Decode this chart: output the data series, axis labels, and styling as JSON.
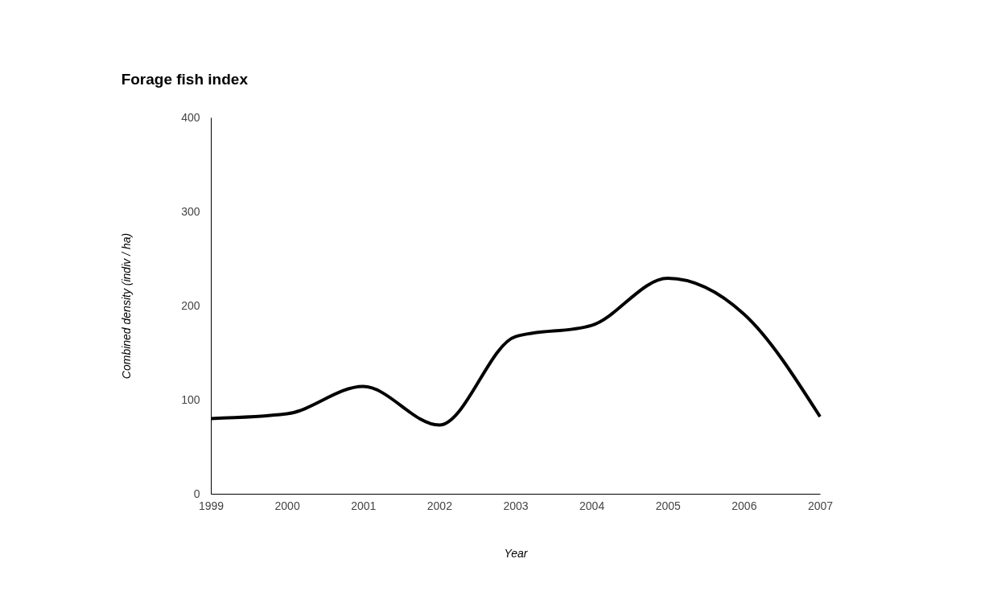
{
  "chart_data": {
    "type": "line",
    "title": "Forage fish index",
    "xlabel": "Year",
    "ylabel": "Combined density (indiv / ha)",
    "x": [
      1999,
      2000,
      2001,
      2002,
      2003,
      2004,
      2005,
      2006,
      2007
    ],
    "series": [
      {
        "color": "#000000",
        "values": [
          80,
          85,
          114,
          73,
          167,
          179,
          229,
          191,
          82
        ]
      }
    ],
    "xlim": [
      1999,
      2007
    ],
    "xticks": [
      1999,
      2000,
      2001,
      2002,
      2003,
      2004,
      2005,
      2006,
      2007
    ],
    "ylim": [
      0,
      400
    ],
    "yticks": [
      0,
      100,
      200,
      300,
      400
    ],
    "grid": false,
    "legend": false,
    "marker": "none",
    "line_style": "solid"
  }
}
